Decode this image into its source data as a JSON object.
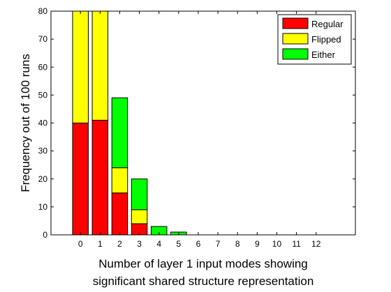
{
  "chart_data": {
    "type": "bar",
    "stacked": true,
    "categories": [
      "0",
      "1",
      "2",
      "3",
      "4",
      "5",
      "6",
      "7",
      "8",
      "9",
      "10",
      "11",
      "12"
    ],
    "series": [
      {
        "name": "Regular",
        "color": "#ff0000",
        "values": [
          40,
          41,
          15,
          4,
          0,
          0,
          0,
          0,
          0,
          0,
          0,
          0,
          0
        ]
      },
      {
        "name": "Flipped",
        "color": "#ffff00",
        "values": [
          40,
          39,
          9,
          5,
          0,
          0,
          0,
          0,
          0,
          0,
          0,
          0,
          0
        ]
      },
      {
        "name": "Either",
        "color": "#00ff00",
        "values": [
          0,
          0,
          25,
          11,
          3,
          1,
          0,
          0,
          0,
          0,
          0,
          0,
          0
        ]
      }
    ],
    "xlabel_lines": [
      "Number of layer 1 input modes showing",
      "significant shared structure representation"
    ],
    "ylabel": "Frequency out of 100 runs",
    "ylim": [
      0,
      80
    ],
    "yticks": [
      0,
      10,
      20,
      30,
      40,
      50,
      60,
      70,
      80
    ],
    "xlim": [
      -1.5,
      14
    ],
    "grid": false,
    "legend_position": "top-right"
  }
}
